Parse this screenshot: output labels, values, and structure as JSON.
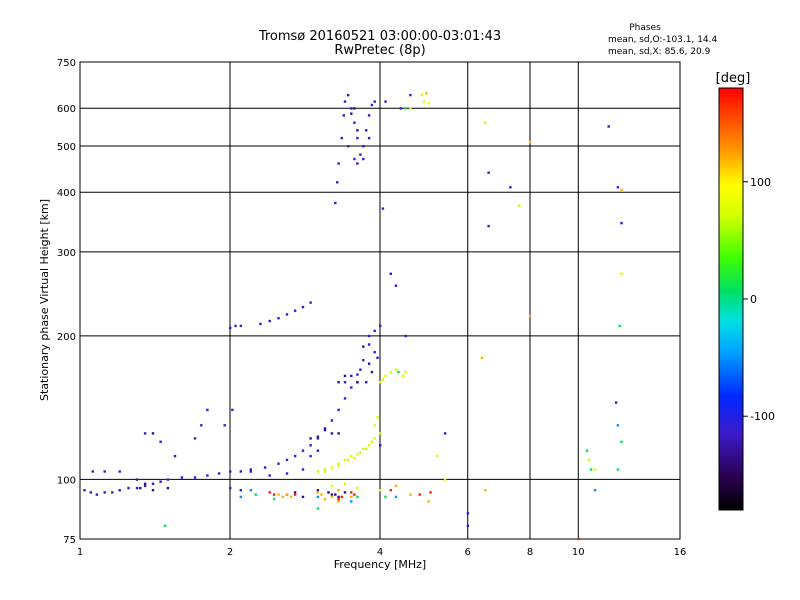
{
  "header": {
    "title": "Tromsø 20160521 03:00:00-03:01:43",
    "subtitle": "RwPretec (8p)",
    "phases_title": "Phases",
    "phases_o": "mean, sd,O:-103.1, 14.4",
    "phases_x": "mean, sd,X:  85.6, 20.9"
  },
  "chart_data": {
    "type": "scatter",
    "xlabel": "Frequency [MHz]",
    "ylabel": "Stationary phase Virtual Height [km]",
    "x_scale": "log",
    "y_scale": "log",
    "xlim": [
      1,
      16
    ],
    "ylim": [
      75,
      750
    ],
    "x_ticks": [
      1,
      2,
      4,
      6,
      8,
      10,
      16
    ],
    "x_tick_labels": [
      "1",
      "2",
      "4",
      "6",
      "8",
      "10",
      "16"
    ],
    "y_ticks": [
      75,
      100,
      200,
      300,
      400,
      500,
      600,
      750
    ],
    "y_tick_labels": [
      "75",
      "100",
      "200",
      "300",
      "400",
      "500",
      "600",
      "750"
    ],
    "grid": true,
    "colorbar": {
      "label": "[deg]",
      "range": [
        -180,
        180
      ],
      "ticks": [
        100,
        0,
        -100
      ],
      "tick_labels": [
        "100",
        "0",
        "-100"
      ]
    },
    "series": [
      {
        "phase": -105,
        "points": [
          [
            1.02,
            95
          ],
          [
            1.05,
            94
          ],
          [
            1.08,
            93
          ],
          [
            1.12,
            94
          ],
          [
            1.16,
            94
          ],
          [
            1.2,
            95
          ],
          [
            1.25,
            96
          ],
          [
            1.3,
            96
          ],
          [
            1.35,
            97
          ],
          [
            1.4,
            98
          ],
          [
            1.45,
            99
          ],
          [
            1.5,
            100
          ],
          [
            1.6,
            101
          ],
          [
            1.7,
            101
          ],
          [
            1.8,
            102
          ],
          [
            1.9,
            103
          ],
          [
            2.0,
            104
          ],
          [
            2.1,
            104
          ],
          [
            2.2,
            105
          ],
          [
            2.35,
            106
          ],
          [
            2.5,
            108
          ],
          [
            2.6,
            110
          ],
          [
            2.7,
            112
          ],
          [
            2.8,
            115
          ],
          [
            2.9,
            118
          ],
          [
            3.0,
            122
          ],
          [
            3.1,
            127
          ],
          [
            3.2,
            133
          ],
          [
            3.3,
            140
          ],
          [
            3.4,
            148
          ],
          [
            3.5,
            156
          ],
          [
            3.6,
            166
          ],
          [
            3.7,
            178
          ],
          [
            3.8,
            192
          ],
          [
            3.9,
            205
          ],
          [
            2.0,
            208
          ],
          [
            2.05,
            210
          ],
          [
            2.1,
            210
          ],
          [
            2.3,
            212
          ],
          [
            2.4,
            215
          ],
          [
            2.5,
            218
          ],
          [
            2.6,
            222
          ],
          [
            2.7,
            226
          ],
          [
            2.8,
            230
          ],
          [
            2.9,
            235
          ],
          [
            1.35,
            125
          ],
          [
            1.45,
            120
          ],
          [
            1.55,
            112
          ],
          [
            1.7,
            122
          ],
          [
            1.75,
            130
          ],
          [
            1.8,
            140
          ],
          [
            1.95,
            130
          ],
          [
            2.02,
            140
          ],
          [
            1.06,
            104
          ],
          [
            1.12,
            104
          ],
          [
            1.2,
            104
          ],
          [
            3.25,
            380
          ],
          [
            3.28,
            420
          ],
          [
            3.3,
            460
          ],
          [
            3.35,
            520
          ],
          [
            3.38,
            580
          ],
          [
            3.4,
            620
          ],
          [
            3.45,
            640
          ],
          [
            3.5,
            600
          ],
          [
            3.55,
            560
          ],
          [
            3.6,
            520
          ],
          [
            3.65,
            480
          ],
          [
            3.7,
            500
          ],
          [
            3.75,
            540
          ],
          [
            3.8,
            580
          ],
          [
            3.85,
            610
          ],
          [
            3.9,
            620
          ],
          [
            3.45,
            500
          ],
          [
            3.55,
            470
          ],
          [
            3.6,
            460
          ],
          [
            3.7,
            470
          ],
          [
            3.8,
            520
          ],
          [
            4.05,
            370
          ],
          [
            4.1,
            620
          ],
          [
            4.4,
            600
          ],
          [
            4.6,
            640
          ],
          [
            4.2,
            270
          ],
          [
            4.3,
            255
          ],
          [
            4.0,
            210
          ],
          [
            3.65,
            170
          ],
          [
            3.75,
            160
          ],
          [
            3.5,
            165
          ],
          [
            3.4,
            160
          ],
          [
            3.8,
            200
          ],
          [
            3.9,
            185
          ],
          [
            2.1,
            95
          ],
          [
            2.0,
            96
          ],
          [
            11.5,
            550
          ],
          [
            12.0,
            410
          ],
          [
            12.2,
            345
          ],
          [
            11.9,
            145
          ],
          [
            7.3,
            410
          ],
          [
            6.6,
            340
          ],
          [
            6.6,
            440
          ],
          [
            6.0,
            85
          ],
          [
            6.0,
            80
          ],
          [
            5.4,
            125
          ],
          [
            4.0,
            118
          ],
          [
            3.95,
            180
          ],
          [
            4.5,
            200
          ],
          [
            3.0,
            115
          ],
          [
            2.8,
            105
          ],
          [
            2.6,
            103
          ],
          [
            2.4,
            102
          ],
          [
            2.9,
            112
          ],
          [
            2.2,
            104
          ]
        ]
      },
      {
        "phase": -130,
        "points": [
          [
            1.3,
            100
          ],
          [
            1.32,
            96
          ],
          [
            1.35,
            98
          ],
          [
            1.4,
            95
          ],
          [
            1.5,
            96
          ],
          [
            3.1,
            128
          ],
          [
            3.3,
            160
          ],
          [
            3.4,
            165
          ],
          [
            3.6,
            160
          ],
          [
            3.7,
            190
          ],
          [
            3.8,
            175
          ],
          [
            3.85,
            168
          ],
          [
            3.5,
            585
          ],
          [
            3.6,
            540
          ],
          [
            3.55,
            600
          ],
          [
            3.3,
            125
          ],
          [
            3.2,
            125
          ],
          [
            3.0,
            123
          ],
          [
            2.9,
            122
          ],
          [
            3.0,
            95
          ],
          [
            3.2,
            93
          ],
          [
            3.3,
            92
          ],
          [
            3.4,
            94
          ],
          [
            3.25,
            93
          ],
          [
            3.15,
            94
          ],
          [
            2.7,
            94
          ],
          [
            2.6,
            93
          ],
          [
            2.8,
            92
          ],
          [
            3.6,
            160
          ],
          [
            1.4,
            125
          ]
        ]
      },
      {
        "phase": 70,
        "points": [
          [
            3.1,
            105
          ],
          [
            3.2,
            106
          ],
          [
            3.3,
            108
          ],
          [
            3.4,
            110
          ],
          [
            3.5,
            112
          ],
          [
            3.6,
            113
          ],
          [
            3.7,
            116
          ],
          [
            3.8,
            118
          ],
          [
            3.9,
            122
          ],
          [
            4.0,
            125
          ],
          [
            3.9,
            130
          ],
          [
            3.95,
            135
          ],
          [
            3.0,
            104
          ],
          [
            3.1,
            104
          ],
          [
            3.3,
            107
          ],
          [
            3.45,
            110
          ],
          [
            3.55,
            111
          ],
          [
            3.65,
            114
          ],
          [
            3.75,
            116
          ],
          [
            3.85,
            120
          ],
          [
            4.0,
            160
          ],
          [
            4.05,
            162
          ],
          [
            4.1,
            165
          ],
          [
            4.2,
            168
          ],
          [
            4.3,
            170
          ],
          [
            4.45,
            165
          ],
          [
            4.5,
            168
          ],
          [
            4.6,
            600
          ],
          [
            4.85,
            640
          ],
          [
            4.9,
            620
          ],
          [
            5.0,
            615
          ],
          [
            5.4,
            100
          ],
          [
            5.2,
            112
          ],
          [
            6.5,
            560
          ],
          [
            7.6,
            375
          ],
          [
            10.5,
            110
          ],
          [
            10.8,
            105
          ],
          [
            12.2,
            270
          ],
          [
            4.0,
            95
          ],
          [
            3.2,
            97
          ],
          [
            3.4,
            98
          ],
          [
            3.6,
            96
          ]
        ]
      },
      {
        "phase": 120,
        "points": [
          [
            2.5,
            93
          ],
          [
            2.55,
            92
          ],
          [
            2.6,
            93
          ],
          [
            2.65,
            92
          ],
          [
            3.0,
            94
          ],
          [
            3.05,
            93
          ],
          [
            3.1,
            91
          ],
          [
            3.2,
            92
          ],
          [
            3.3,
            90
          ],
          [
            3.5,
            92
          ],
          [
            4.3,
            97
          ],
          [
            4.6,
            93
          ],
          [
            5.0,
            90
          ],
          [
            6.4,
            180
          ],
          [
            8.0,
            510
          ],
          [
            8.0,
            220
          ],
          [
            12.2,
            405
          ],
          [
            6.5,
            95
          ],
          [
            4.95,
            645
          ],
          [
            3.3,
            95
          ],
          [
            10.0,
            75
          ]
        ]
      },
      {
        "phase": 170,
        "points": [
          [
            2.4,
            94
          ],
          [
            2.45,
            93
          ],
          [
            2.7,
            93
          ],
          [
            3.3,
            91
          ],
          [
            3.35,
            92
          ],
          [
            3.5,
            94
          ],
          [
            3.55,
            93
          ],
          [
            4.2,
            95
          ],
          [
            4.8,
            93
          ],
          [
            5.05,
            94
          ]
        ]
      },
      {
        "phase": 10,
        "points": [
          [
            1.48,
            80
          ],
          [
            2.25,
            93
          ],
          [
            2.45,
            91
          ],
          [
            3.0,
            87
          ],
          [
            3.6,
            92
          ],
          [
            4.1,
            92
          ],
          [
            4.35,
            168
          ],
          [
            4.5,
            600
          ],
          [
            12.1,
            210
          ],
          [
            12.2,
            120
          ],
          [
            10.4,
            115
          ],
          [
            10.6,
            105
          ],
          [
            12.0,
            105
          ]
        ]
      },
      {
        "phase": -50,
        "points": [
          [
            2.1,
            92
          ],
          [
            2.2,
            95
          ],
          [
            3.0,
            92
          ],
          [
            3.5,
            90
          ],
          [
            4.3,
            92
          ],
          [
            12.0,
            130
          ],
          [
            10.8,
            95
          ]
        ]
      }
    ]
  }
}
